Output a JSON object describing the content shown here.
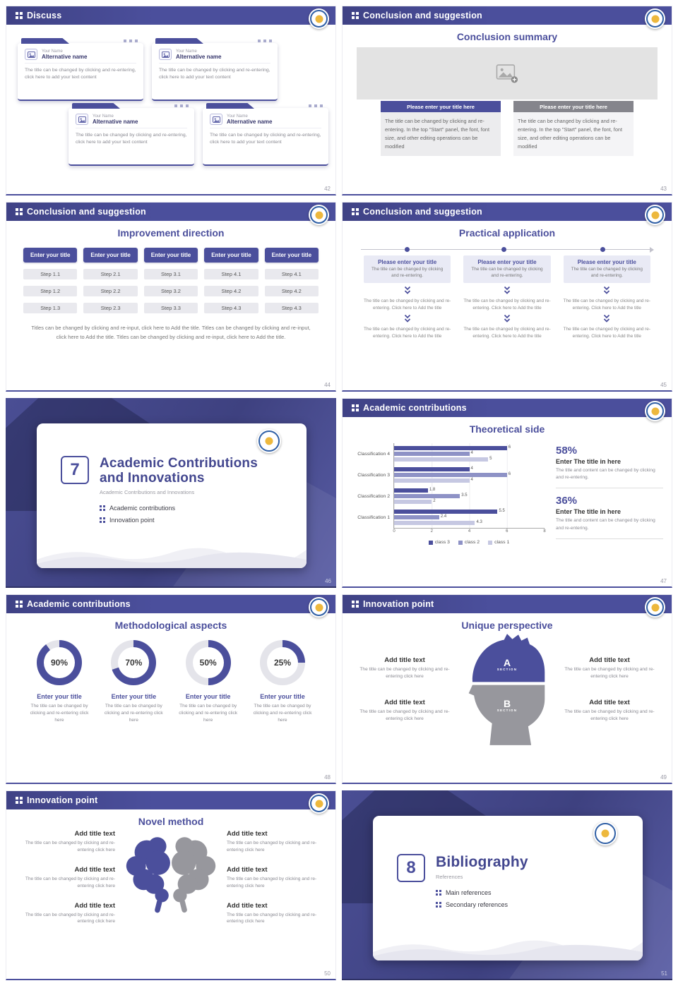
{
  "theme": {
    "accent": "#4b4f9c",
    "accent_dark": "#3c3f7e",
    "gray_text": "#8a8a92",
    "dark_text": "#3a3a3a",
    "light_bg": "#ebebf0",
    "btn_gray": "#85858c",
    "placeholder_bg": "#e3e3e3"
  },
  "chart_data": [
    {
      "type": "bar",
      "orientation": "horizontal",
      "title": "Theoretical side",
      "categories": [
        "Classification 4",
        "Classification 3",
        "Classification 2",
        "Classification 1"
      ],
      "series": [
        {
          "name": "class 3",
          "color": "#4b4f9c",
          "values": [
            6,
            4,
            1.8,
            5.5
          ]
        },
        {
          "name": "class 2",
          "color": "#8e92c6",
          "values": [
            4,
            6,
            3.5,
            2.4
          ]
        },
        {
          "name": "class 1",
          "color": "#c6c8e2",
          "values": [
            5,
            4,
            2,
            4.3
          ]
        }
      ],
      "xlim": [
        0,
        8
      ],
      "xticks": [
        "0",
        "2",
        "4",
        "6",
        "8"
      ],
      "legend": [
        "class 3",
        "class 2",
        "class 1"
      ],
      "legend_position": "bottom",
      "grid": true
    },
    {
      "type": "donut",
      "values": [
        90,
        70,
        50,
        25
      ],
      "labels": [
        "Enter your title",
        "Enter your title",
        "Enter your title",
        "Enter your title"
      ],
      "color": "#4b4f9c",
      "track_color": "#e4e4ea"
    }
  ],
  "s42": {
    "header": "Discuss",
    "page": "42",
    "card": {
      "name": "Your Name",
      "alt": "Alternative name",
      "body": "The title can be changed by clicking and re-entering, click here to add your text content"
    }
  },
  "s43": {
    "header": "Conclusion and suggestion",
    "subtitle": "Conclusion summary",
    "button_left": "Please enter your title here",
    "button_right": "Please enter your title here",
    "para": "The title can be changed by clicking and re-entering. In the top \"Start\" panel, the font, font size, and other editing operations can be modified",
    "page": "43"
  },
  "s44": {
    "header": "Conclusion and suggestion",
    "subtitle": "Improvement direction",
    "col_title": "Enter your title",
    "cols": [
      [
        "Step 1.1",
        "Step 1.2",
        "Step 1.3"
      ],
      [
        "Step 2.1",
        "Step 2.2",
        "Step 2.3"
      ],
      [
        "Step 3.1",
        "Step 3.2",
        "Step 3.3"
      ],
      [
        "Step 4.1",
        "Step 4.2",
        "Step 4.3"
      ],
      [
        "Step 4.1",
        "Step 4.2",
        "Step 4.3"
      ]
    ],
    "footer": "Titles can be changed by clicking and re-input, click here to Add the title. Titles can be changed by clicking and re-input, click here to Add the title. Titles can be changed by clicking and re-input, click here to Add the title.",
    "page": "44"
  },
  "s45": {
    "header": "Conclusion and suggestion",
    "subtitle": "Practical application",
    "box_title": "Please enter your title",
    "box_text": "The title can be changed by clicking and re-entering.",
    "step_text": "The title can be changed by clicking and re-entering. Click here to Add the title",
    "page": "45"
  },
  "s46": {
    "number": "7",
    "title_line1": "Academic Contributions",
    "title_line2": "and Innovations",
    "subtitle": "Academic Contributions and Innovations",
    "bullets": [
      "Academic contributions",
      "Innovation point"
    ],
    "page": "46"
  },
  "s47": {
    "header": "Academic contributions",
    "subtitle": "Theoretical side",
    "stats": [
      {
        "pct": "58%",
        "title": "Enter The title in here",
        "text": "The title and content can be changed by clicking and re-entering."
      },
      {
        "pct": "36%",
        "title": "Enter The title in here",
        "text": "The title and content can be changed by clicking and re-entering."
      }
    ],
    "page": "47"
  },
  "s48": {
    "header": "Academic contributions",
    "subtitle": "Methodological aspects",
    "item_title": "Enter your title",
    "item_text": "The title can be changed by clicking and re-entering click here",
    "page": "48"
  },
  "s49": {
    "header": "Innovation point",
    "subtitle": "Unique perspective",
    "item_title": "Add title text",
    "item_text": "The title can be changed by clicking and re-entering click here",
    "section_a": "A",
    "section_b": "B",
    "section_label": "SECTION",
    "page": "49"
  },
  "s50": {
    "header": "Innovation point",
    "subtitle": "Novel method",
    "item_title": "Add title text",
    "item_text": "The title can be changed by clicking and re-entering click here",
    "page": "50"
  },
  "s51": {
    "number": "8",
    "title": "Bibliography",
    "subtitle": "References",
    "bullets": [
      "Main references",
      "Secondary references"
    ],
    "page": "51"
  }
}
